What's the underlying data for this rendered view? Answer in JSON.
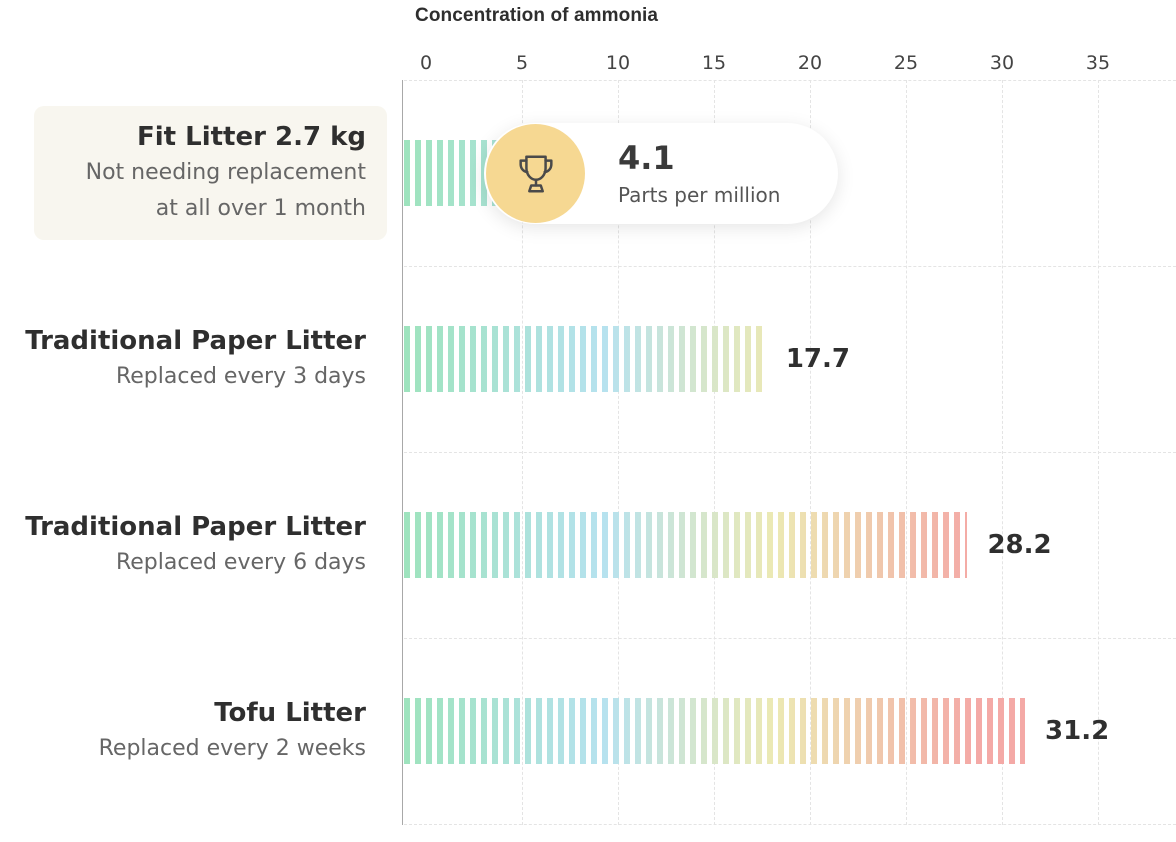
{
  "chart_data": {
    "type": "bar",
    "orientation": "horizontal",
    "xlabel": "Concentration of ammonia",
    "xlim": [
      0,
      35
    ],
    "ticks": [
      0,
      5,
      10,
      15,
      20,
      25,
      30,
      35
    ],
    "grid": true,
    "categories": [
      {
        "name": "Fit Litter 2.7 kg",
        "sub": [
          "Not needing replacement",
          "at all over 1 month"
        ],
        "value": 4.1,
        "highlight": true
      },
      {
        "name": "Traditional Paper Litter",
        "sub": [
          "Replaced every 3 days"
        ],
        "value": 17.7
      },
      {
        "name": "Traditional Paper Litter",
        "sub": [
          "Replaced every 6 days"
        ],
        "value": 28.2
      },
      {
        "name": "Tofu Litter",
        "sub": [
          "Replaced every 2 weeks"
        ],
        "value": 31.2
      }
    ],
    "values": [
      4.1,
      17.7,
      28.2,
      31.2
    ],
    "colors": {
      "start": "#9ee3bd",
      "mid": "#b6e2ef",
      "warm": "#ece9b3",
      "end": "#f4a9a6"
    }
  },
  "winner": {
    "value": "4.1",
    "unit": "Parts per million",
    "icon": "trophy-icon"
  }
}
